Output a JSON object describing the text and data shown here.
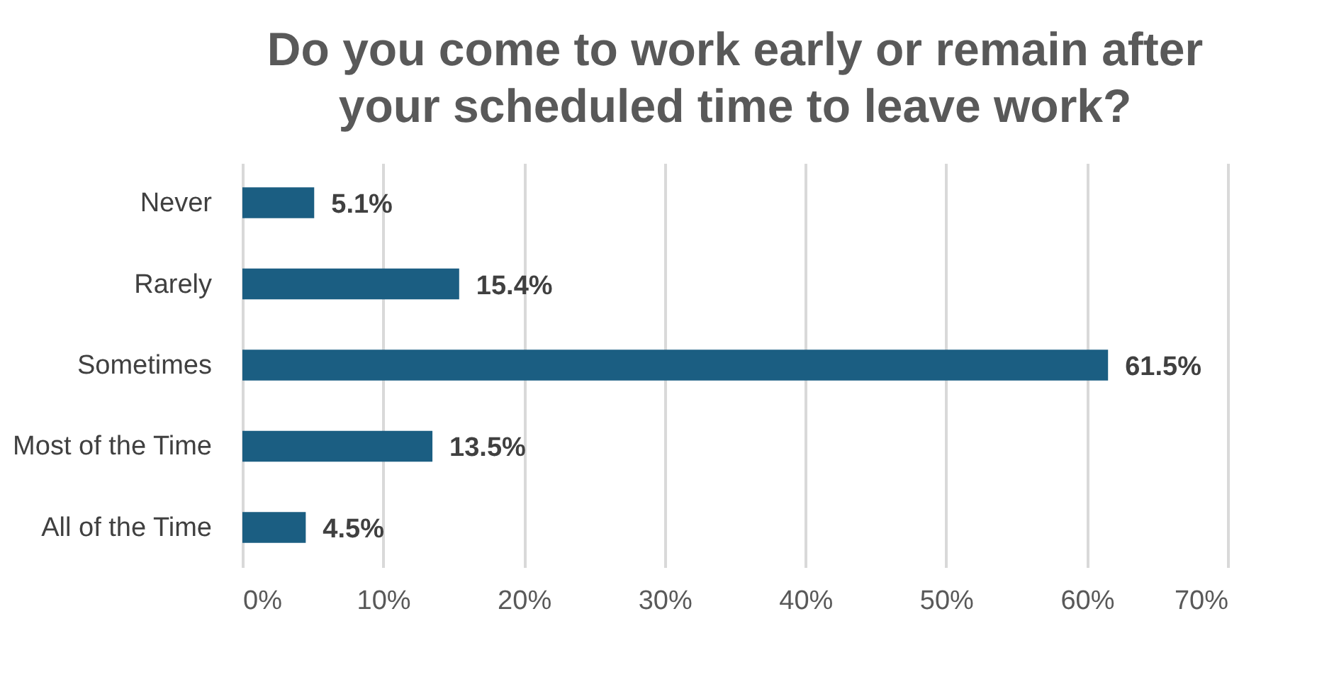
{
  "chart_data": {
    "type": "bar",
    "orientation": "horizontal",
    "title": "Do you come to work early or remain after your scheduled time to leave work?",
    "categories": [
      "Never",
      "Rarely",
      "Sometimes",
      "Most of the Time",
      "All of the Time"
    ],
    "values": [
      5.1,
      15.4,
      61.5,
      13.5,
      4.5
    ],
    "value_labels": [
      "5.1%",
      "15.4%",
      "61.5%",
      "13.5%",
      "4.5%"
    ],
    "color": "#1b5e82",
    "xlim": [
      0,
      70
    ],
    "xticks": [
      {
        "value": 0,
        "label": "0%"
      },
      {
        "value": 10,
        "label": "10%"
      },
      {
        "value": 20,
        "label": "20%"
      },
      {
        "value": 30,
        "label": "30%"
      },
      {
        "value": 40,
        "label": "40%"
      },
      {
        "value": 50,
        "label": "50%"
      },
      {
        "value": 60,
        "label": "60%"
      },
      {
        "value": 70,
        "label": "70%"
      }
    ],
    "grid": "x"
  }
}
